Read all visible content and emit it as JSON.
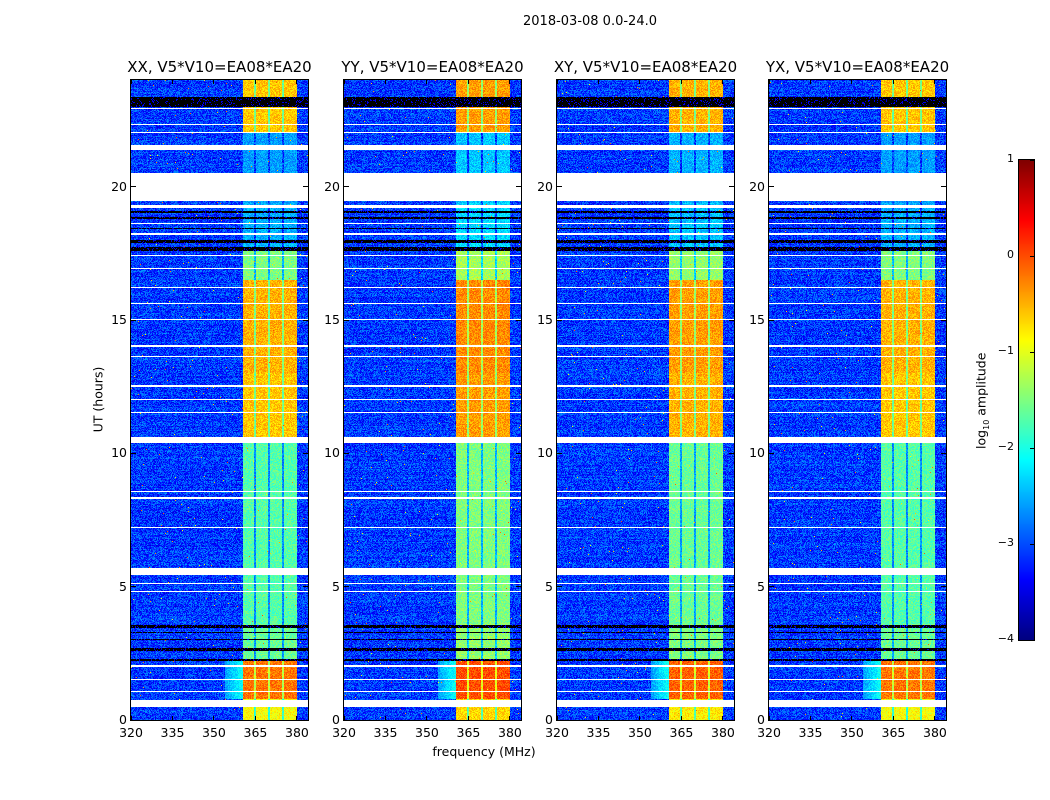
{
  "chart_data": {
    "type": "heatmap",
    "title": "2018-03-08 0.0-24.0",
    "xlabel": "frequency (MHz)",
    "ylabel": "UT (hours)",
    "xlim": [
      320,
      384
    ],
    "ylim": [
      0,
      24
    ],
    "xticks": [
      320,
      335,
      350,
      365,
      380
    ],
    "yticks": [
      0,
      5,
      10,
      15,
      20
    ],
    "colorbar": {
      "label_prefix": "log",
      "label_sub": "10",
      "label_suffix": " amplitude",
      "range": [
        -4,
        1
      ],
      "ticks": [
        -4,
        -3,
        -2,
        -1,
        0,
        1
      ],
      "colormap": "jet"
    },
    "panels": [
      {
        "title": "XX, V5*V10=EA08*EA20",
        "band_offset": 0
      },
      {
        "title": "YY, V5*V10=EA08*EA20",
        "band_offset": 0.2
      },
      {
        "title": "XY, V5*V10=EA08*EA20",
        "band_offset": 0.1
      },
      {
        "title": "YX, V5*V10=EA08*EA20",
        "band_offset": 0
      }
    ],
    "background_level": -3.1,
    "band": {
      "freq_range": [
        360.5,
        380
      ],
      "dividers": [
        365,
        370,
        375
      ]
    },
    "band_levels": [
      [
        0.0,
        0.8,
        -0.9
      ],
      [
        0.8,
        2.2,
        -0.2
      ],
      [
        2.2,
        3.6,
        -1.6
      ],
      [
        3.6,
        10.5,
        -1.7
      ],
      [
        10.5,
        13.0,
        -0.6
      ],
      [
        13.0,
        16.5,
        -0.5
      ],
      [
        16.5,
        17.6,
        -1.5
      ],
      [
        17.6,
        19.4,
        -2.5
      ],
      [
        19.4,
        22.0,
        -2.6
      ],
      [
        22.0,
        24.0,
        -0.6
      ]
    ],
    "flagged_rows_white": [
      [
        0.5,
        0.75
      ],
      [
        1.05,
        1.1
      ],
      [
        1.5,
        1.55
      ],
      [
        2.0,
        2.05
      ],
      [
        5.45,
        5.7
      ],
      [
        5.1,
        5.15
      ],
      [
        4.8,
        4.85
      ],
      [
        7.2,
        7.25
      ],
      [
        8.3,
        8.35
      ],
      [
        8.55,
        8.6
      ],
      [
        10.4,
        10.6
      ],
      [
        11.5,
        11.55
      ],
      [
        12.0,
        12.05
      ],
      [
        12.5,
        12.55
      ],
      [
        13.6,
        13.65
      ],
      [
        14.0,
        14.05
      ],
      [
        15.0,
        15.05
      ],
      [
        15.6,
        15.65
      ],
      [
        16.2,
        16.25
      ],
      [
        16.9,
        16.95
      ],
      [
        17.4,
        17.45
      ],
      [
        18.2,
        18.25
      ],
      [
        18.6,
        18.65
      ],
      [
        19.2,
        19.3
      ],
      [
        19.45,
        20.5
      ],
      [
        21.37,
        21.55
      ],
      [
        22.0,
        22.05
      ],
      [
        22.3,
        22.35
      ],
      [
        22.9,
        22.95
      ]
    ],
    "flagged_rows_black": [
      [
        2.2,
        2.3
      ],
      [
        2.6,
        2.7
      ],
      [
        3.0,
        3.05
      ],
      [
        3.25,
        3.3
      ],
      [
        3.45,
        3.55
      ],
      [
        17.6,
        17.75
      ],
      [
        17.9,
        18.0
      ],
      [
        18.4,
        18.45
      ],
      [
        18.8,
        18.85
      ],
      [
        19.0,
        19.1
      ],
      [
        23.0,
        23.35
      ]
    ]
  }
}
